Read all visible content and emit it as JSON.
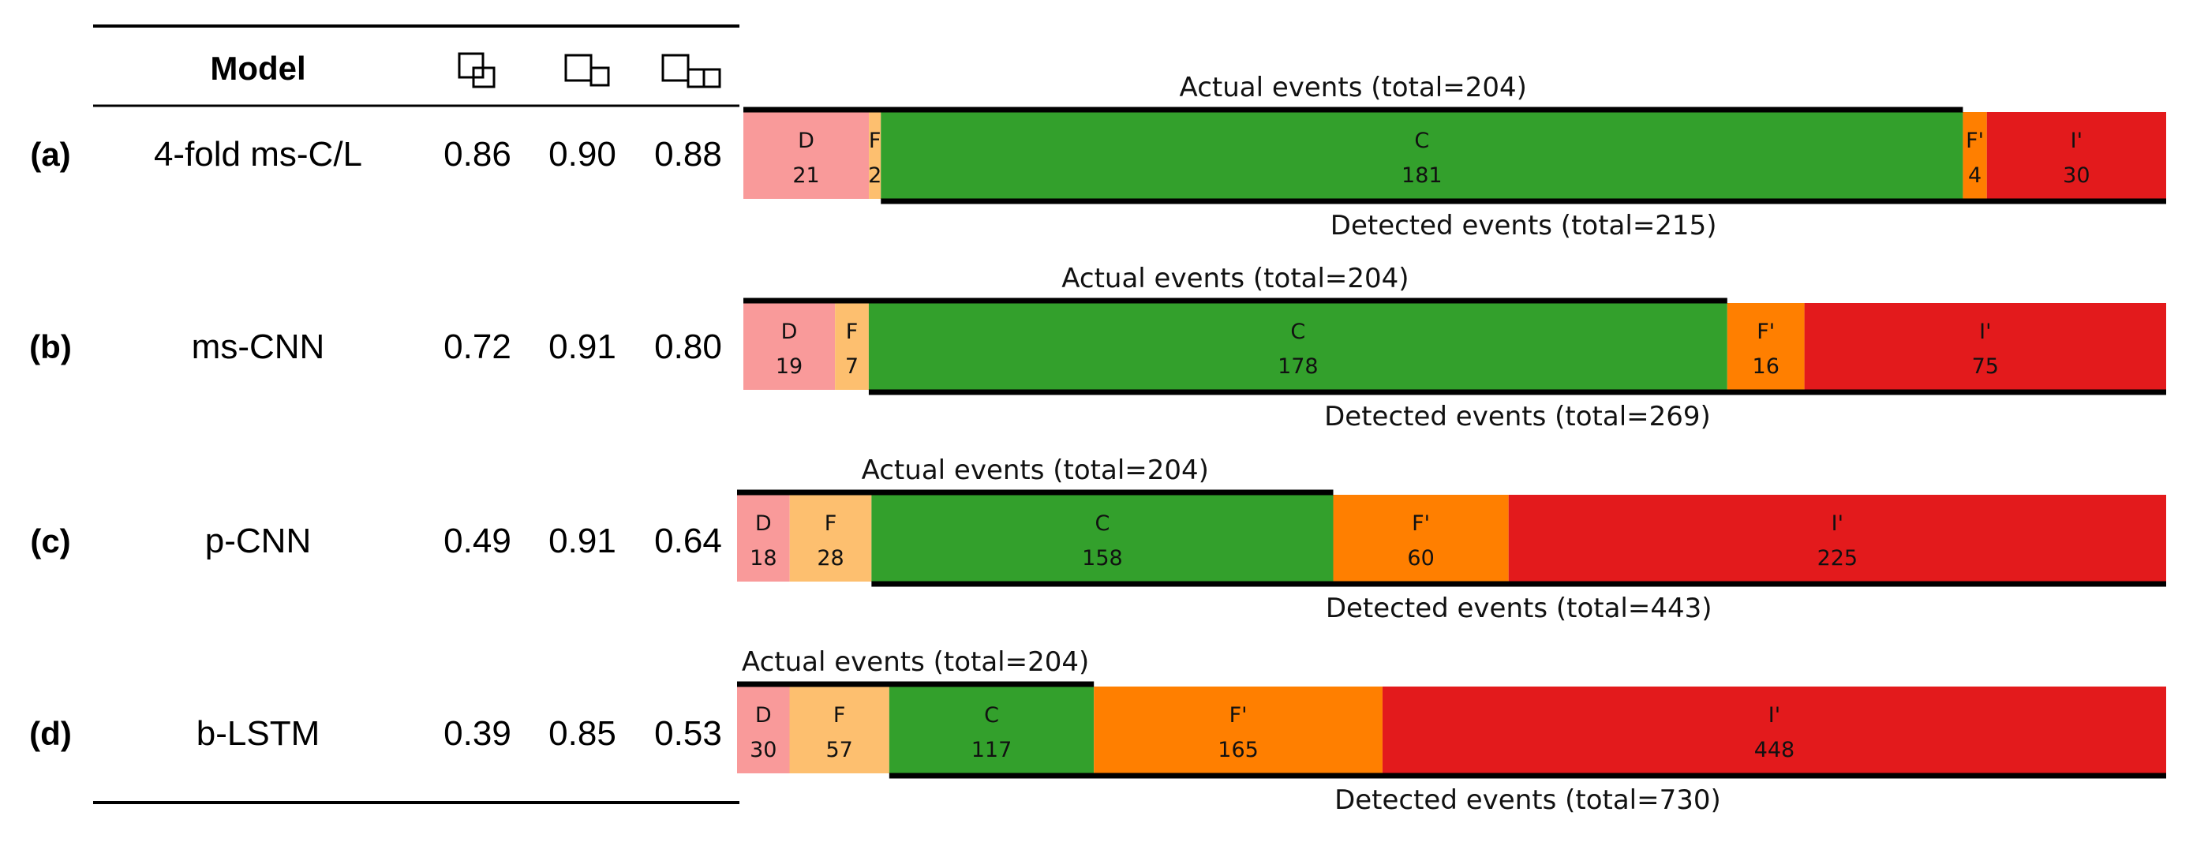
{
  "table": {
    "header": {
      "model": "Model"
    },
    "metric_icons": [
      "precision-icon",
      "recall-icon",
      "f1-icon"
    ],
    "rows": [
      {
        "label": "(a)",
        "model": "4-fold ms-C/L",
        "precision": "0.86",
        "recall": "0.90",
        "f1": "0.88"
      },
      {
        "label": "(b)",
        "model": "ms-CNN",
        "precision": "0.72",
        "recall": "0.91",
        "f1": "0.80"
      },
      {
        "label": "(c)",
        "model": "p-CNN",
        "precision": "0.49",
        "recall": "0.91",
        "f1": "0.64"
      },
      {
        "label": "(d)",
        "model": "b-LSTM",
        "precision": "0.39",
        "recall": "0.85",
        "f1": "0.53"
      }
    ]
  },
  "chart_data": {
    "type": "bar",
    "orientation": "horizontal-stacked",
    "categories": [
      "D",
      "F",
      "C",
      "F'",
      "I'"
    ],
    "colors": {
      "D": "#f99a9a",
      "F": "#fdbf6f",
      "C": "#33a02c",
      "F'": "#ff7f00",
      "I'": "#e31a1c"
    },
    "series": [
      {
        "name": "4-fold ms-C/L",
        "values": [
          21,
          2,
          181,
          4,
          30
        ],
        "actual_label": "Actual events (total=204)",
        "detected_label": "Detected events (total=215)"
      },
      {
        "name": "ms-CNN",
        "values": [
          19,
          7,
          178,
          16,
          75
        ],
        "actual_label": "Actual events (total=204)",
        "detected_label": "Detected events (total=269)"
      },
      {
        "name": "p-CNN",
        "values": [
          18,
          28,
          158,
          60,
          225
        ],
        "actual_label": "Actual events (total=204)",
        "detected_label": "Detected events (total=443)"
      },
      {
        "name": "b-LSTM",
        "values": [
          30,
          57,
          117,
          165,
          448
        ],
        "actual_label": "Actual events (total=204)",
        "detected_label": "Detected events (total=730)"
      }
    ]
  }
}
